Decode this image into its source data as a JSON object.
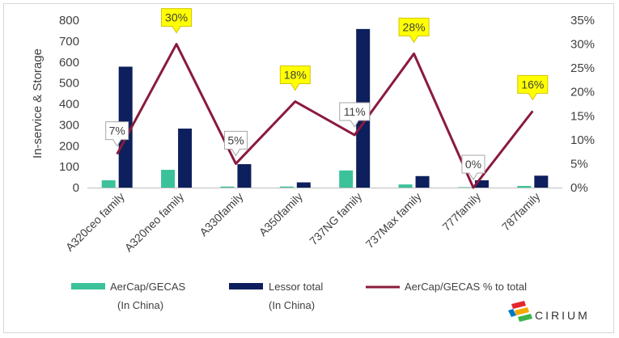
{
  "chart_data": {
    "type": "bar",
    "categories": [
      "A320ceo family",
      "A320neo family",
      "A330family",
      "A350family",
      "737NG family",
      "737Max family",
      "777family",
      "787family"
    ],
    "series": [
      {
        "name": "AerCap/GECAS (In China)",
        "kind": "bar",
        "axis": "left",
        "color": "#3cc29a",
        "values": [
          35,
          85,
          5,
          5,
          82,
          15,
          2,
          8
        ]
      },
      {
        "name": "Lessor total (In China)",
        "kind": "bar",
        "axis": "left",
        "color": "#0d1f5c",
        "values": [
          578,
          282,
          112,
          25,
          758,
          55,
          35,
          57
        ]
      },
      {
        "name": "AerCap/GECAS % to total",
        "kind": "line",
        "axis": "right",
        "color": "#8b1a3c",
        "values": [
          0.07,
          0.3,
          0.05,
          0.18,
          0.11,
          0.28,
          0.0,
          0.16
        ]
      }
    ],
    "data_labels": [
      "7%",
      "30%",
      "5%",
      "18%",
      "11%",
      "28%",
      "0%",
      "16%"
    ],
    "label_highlight": [
      false,
      true,
      false,
      true,
      false,
      true,
      false,
      true
    ],
    "ylabel": "In-service & Storage",
    "ylim": [
      0,
      800
    ],
    "y_ticks": [
      "0",
      "100",
      "200",
      "300",
      "400",
      "500",
      "600",
      "700",
      "800"
    ],
    "y2lim": [
      0,
      0.35
    ],
    "y2_ticks": [
      "0%",
      "5%",
      "10%",
      "15%",
      "20%",
      "25%",
      "30%",
      "35%"
    ],
    "grid": false,
    "legend_position": "bottom",
    "legend": [
      {
        "line1": "AerCap/GECAS",
        "line2": "(In China)"
      },
      {
        "line1": "Lessor total",
        "line2": "(In China)"
      },
      {
        "line1": "AerCap/GECAS % to total",
        "line2": ""
      }
    ],
    "highlight_color": "#ffff00"
  },
  "logo": {
    "text": "CIRIUM"
  }
}
